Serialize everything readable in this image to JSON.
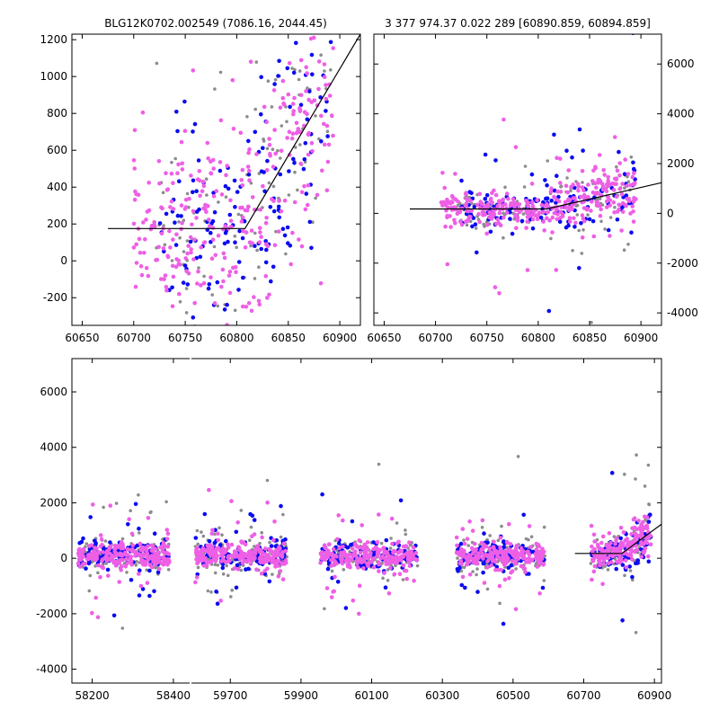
{
  "figure": {
    "title_left": "BLG12K0702.002549 (7086.16, 2044.45)",
    "title_right": "3 377 974.37 0.022 289 [60890.859, 60894.859]"
  },
  "colors": {
    "blue": "#0b0bf2",
    "gray": "#8c8c8c",
    "magenta": "#ee5fe6",
    "model": "#000000"
  },
  "chart_data": [
    {
      "type": "scatter",
      "title": "BLG12K0702.002549 (7086.16, 2044.45)",
      "xlabel": "",
      "ylabel": "",
      "xlim": [
        60640,
        60920
      ],
      "ylim": [
        -350,
        1230
      ],
      "xticks": [
        60650,
        60700,
        60750,
        60800,
        60850,
        60900
      ],
      "yticks": [
        -200,
        0,
        200,
        400,
        600,
        800,
        1000,
        1200
      ],
      "ytick_side": "left",
      "series": [
        {
          "color": "magenta",
          "density": 330,
          "x_range": [
            60700,
            60895
          ],
          "baseline": 175,
          "spread": 220
        },
        {
          "color": "blue",
          "density": 150,
          "x_range": [
            60725,
            60895
          ],
          "baseline": 175,
          "spread": 220
        },
        {
          "color": "gray",
          "density": 120,
          "x_range": [
            60720,
            60895
          ],
          "baseline": 175,
          "spread": 240
        }
      ],
      "model": {
        "x": [
          60675,
          60808,
          60920
        ],
        "y": [
          175,
          175,
          1230
        ]
      },
      "grid": false
    },
    {
      "type": "scatter",
      "title": "3 377 974.37 0.022 289 [60890.859, 60894.859]",
      "xlabel": "",
      "ylabel": "",
      "xlim": [
        60640,
        60920
      ],
      "ylim": [
        -4500,
        7200
      ],
      "xticks": [
        60650,
        60700,
        60750,
        60800,
        60850,
        60900
      ],
      "yticks": [
        -4000,
        -2000,
        0,
        2000,
        4000,
        6000
      ],
      "ytick_side": "right",
      "series": [
        {
          "color": "magenta",
          "density": 340,
          "x_range": [
            60705,
            60895
          ],
          "baseline": 175,
          "spread": 240
        },
        {
          "color": "blue",
          "density": 150,
          "x_range": [
            60725,
            60895
          ],
          "baseline": 175,
          "spread": 280
        },
        {
          "color": "gray",
          "density": 120,
          "x_range": [
            60720,
            60895
          ],
          "baseline": 175,
          "spread": 300
        }
      ],
      "model": {
        "x": [
          60675,
          60808,
          60920
        ],
        "y": [
          175,
          175,
          1230
        ]
      },
      "grid": false
    },
    {
      "type": "scatter",
      "title": "",
      "xlabel": "",
      "ylabel": "",
      "ylim": [
        -4500,
        7200
      ],
      "yticks": [
        -4000,
        -2000,
        0,
        2000,
        4000,
        6000
      ],
      "ytick_side": "left",
      "segments": [
        {
          "xlim": [
            58150,
            58440
          ],
          "xticks": [
            58200,
            58400
          ]
        },
        {
          "xlim": [
            59590,
            60920
          ],
          "xticks": [
            59700,
            59900,
            60100,
            60300,
            60500,
            60700,
            60900
          ]
        }
      ],
      "seasons": [
        {
          "x_range": [
            58165,
            58390
          ]
        },
        {
          "x_range": [
            59600,
            59860
          ]
        },
        {
          "x_range": [
            59955,
            60230
          ]
        },
        {
          "x_range": [
            60340,
            60590
          ]
        },
        {
          "x_range": [
            60720,
            60890
          ]
        }
      ],
      "series_colors": [
        "magenta",
        "blue",
        "gray"
      ],
      "model": {
        "x": [
          60675,
          60808,
          60920
        ],
        "y": [
          175,
          175,
          1230
        ]
      },
      "grid": false
    }
  ]
}
